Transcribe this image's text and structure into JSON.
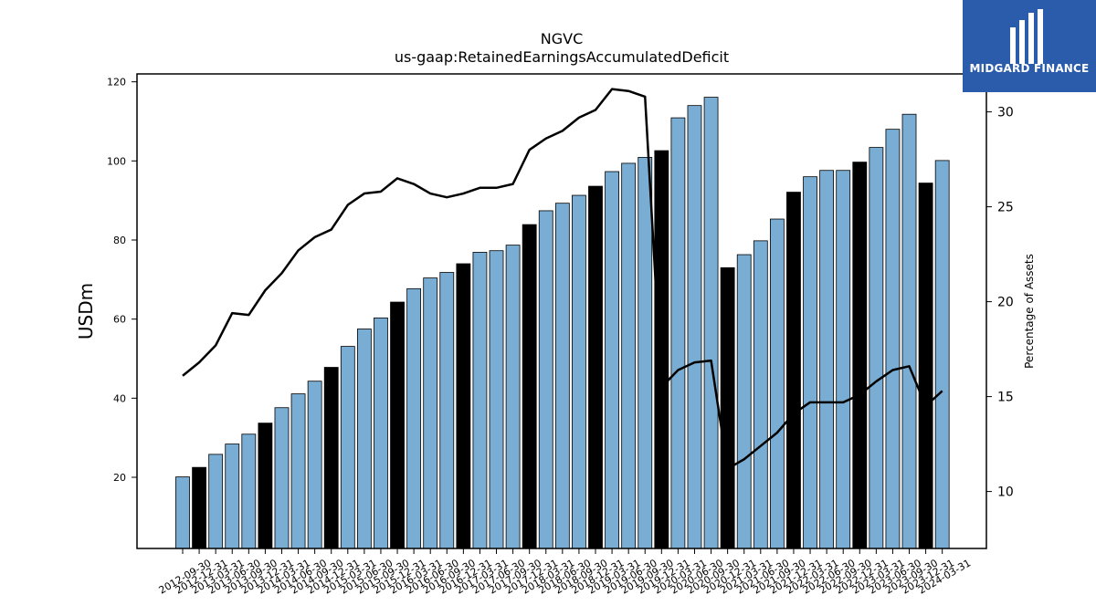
{
  "chart_data": {
    "type": "bar",
    "title": "NGVC",
    "subtitle": "us-gaap:RetainedEarningsAccumulatedDeficit",
    "ylabel": "USDm",
    "y2label": "Percentage of Assets",
    "ylim": [
      2,
      122
    ],
    "y2lim": [
      7,
      32
    ],
    "yticks": [
      20,
      40,
      60,
      80,
      100,
      120
    ],
    "y2ticks": [
      10,
      15,
      20,
      25,
      30
    ],
    "categories": [
      "2012-09-30",
      "2012-12-31",
      "2013-03-31",
      "2013-06-30",
      "2013-09-30",
      "2013-12-31",
      "2014-03-31",
      "2014-06-30",
      "2014-09-30",
      "2014-12-31",
      "2015-03-31",
      "2015-06-30",
      "2015-09-30",
      "2015-12-31",
      "2016-03-31",
      "2016-06-30",
      "2016-09-30",
      "2016-12-31",
      "2017-03-31",
      "2017-06-30",
      "2017-09-30",
      "2017-12-31",
      "2018-03-31",
      "2018-06-30",
      "2018-09-30",
      "2018-12-31",
      "2019-03-31",
      "2019-06-30",
      "2019-09-30",
      "2019-12-31",
      "2020-03-31",
      "2020-06-30",
      "2020-09-30",
      "2020-12-31",
      "2021-03-31",
      "2021-06-30",
      "2021-09-30",
      "2021-12-31",
      "2022-03-31",
      "2022-06-30",
      "2022-09-30",
      "2022-12-31",
      "2023-03-31",
      "2023-06-30",
      "2023-09-30",
      "2023-12-31",
      "2024-03-31"
    ],
    "series": [
      {
        "type": "bar",
        "values": [
          20.1,
          22.5,
          25.8,
          28.4,
          30.9,
          33.7,
          37.6,
          41.1,
          44.3,
          47.8,
          53.1,
          57.5,
          60.3,
          64.3,
          67.7,
          70.4,
          71.8,
          74.0,
          76.9,
          77.3,
          78.7,
          83.9,
          87.4,
          89.3,
          91.3,
          93.6,
          97.3,
          99.4,
          100.9,
          102.6,
          110.9,
          114.0,
          116.1,
          73.0,
          76.3,
          79.8,
          85.3,
          92.1,
          96.0,
          97.6,
          97.6,
          99.7,
          103.4,
          108.0,
          111.8,
          94.4,
          100.1
        ],
        "highlight": [
          false,
          true,
          false,
          false,
          false,
          true,
          false,
          false,
          false,
          true,
          false,
          false,
          false,
          true,
          false,
          false,
          false,
          true,
          false,
          false,
          false,
          true,
          false,
          false,
          false,
          true,
          false,
          false,
          false,
          true,
          false,
          false,
          false,
          true,
          false,
          false,
          false,
          true,
          false,
          false,
          false,
          true,
          false,
          false,
          false,
          true,
          false
        ],
        "color": "#7aadd4",
        "highlight_color": "#000000"
      },
      {
        "type": "line",
        "axis": "right",
        "values": [
          16.1,
          16.8,
          17.7,
          19.4,
          19.3,
          20.6,
          21.5,
          22.7,
          23.4,
          23.8,
          25.1,
          25.7,
          25.8,
          26.5,
          26.2,
          25.7,
          25.5,
          25.7,
          26.0,
          26.0,
          26.2,
          28.0,
          28.6,
          29.0,
          29.7,
          30.1,
          31.2,
          31.1,
          30.8,
          15.5,
          16.4,
          16.8,
          16.9,
          11.2,
          11.7,
          12.4,
          13.1,
          14.1,
          14.7,
          14.7,
          14.7,
          15.1,
          15.8,
          16.4,
          16.6,
          14.5,
          15.3
        ],
        "color": "#000000"
      }
    ],
    "grid": false,
    "legend": "none"
  },
  "logo": {
    "text": "MIDGARD FINANCE",
    "color": "#2b5bab"
  }
}
